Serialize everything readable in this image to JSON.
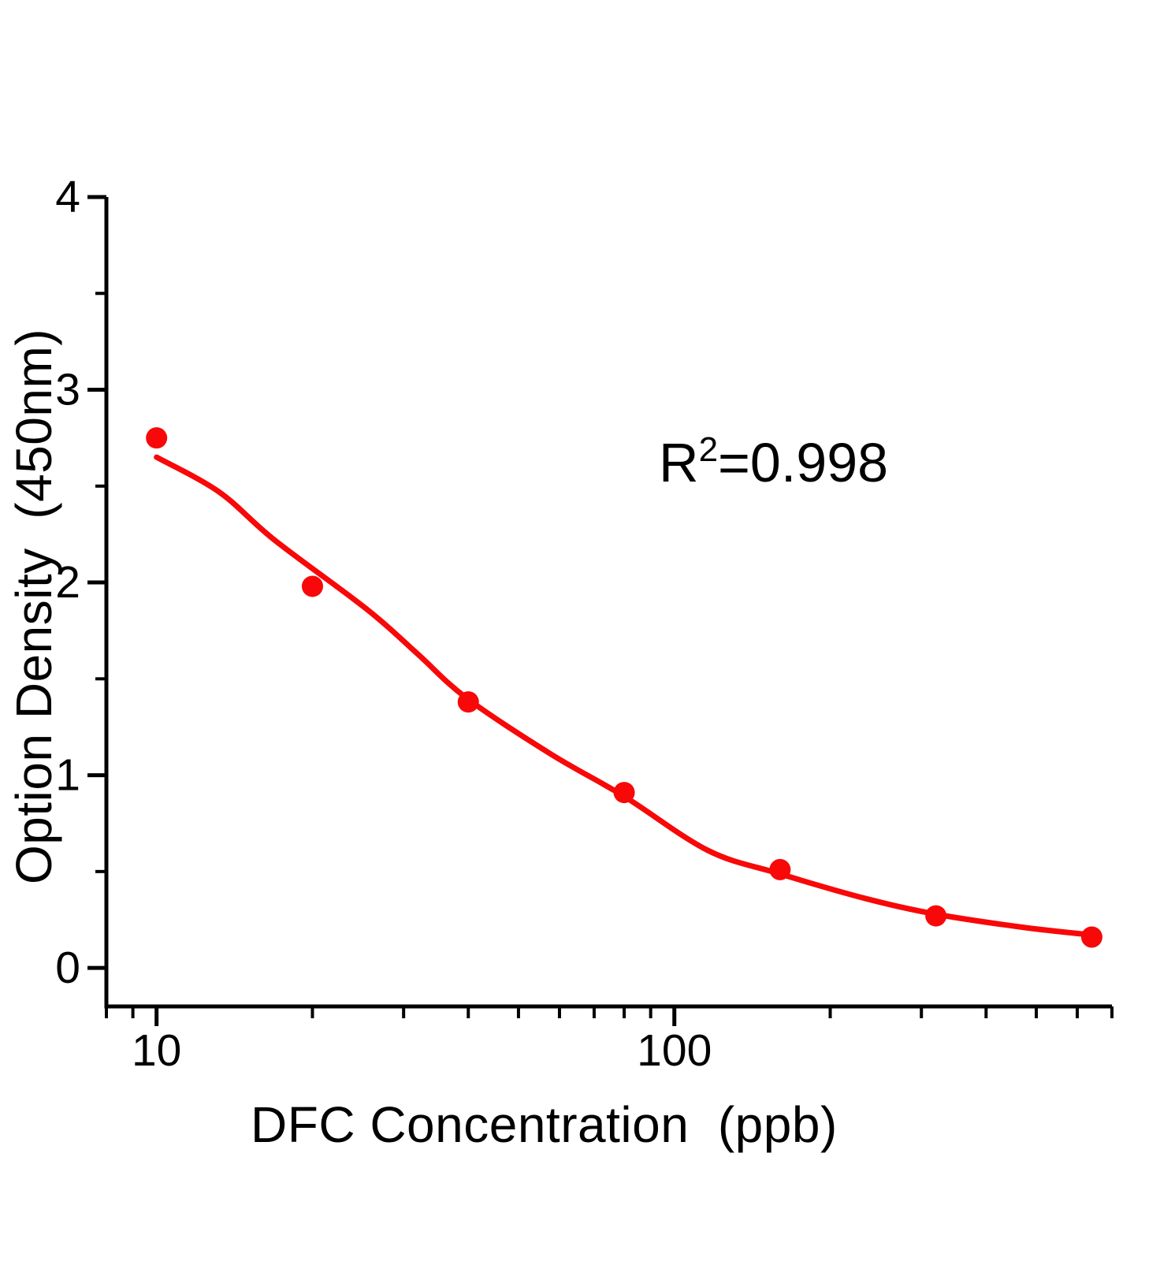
{
  "chart_data": {
    "type": "scatter",
    "title": "",
    "xlabel": "DFC Concentration  (ppb)",
    "ylabel": "Option Density  (450nm)",
    "annotation": {
      "base": "R",
      "sup": "2",
      "rest": "=0.998"
    },
    "x_scale": "log",
    "x_range": [
      8,
      700
    ],
    "y_range": [
      -0.2,
      4.0
    ],
    "x_major_ticks": [
      {
        "value": 10,
        "label": "10"
      },
      {
        "value": 100,
        "label": "100"
      }
    ],
    "x_minor_ticks": [
      8,
      9,
      20,
      30,
      40,
      50,
      60,
      70,
      80,
      90,
      200,
      300,
      400,
      500,
      600,
      700
    ],
    "y_major_ticks": [
      {
        "value": 0,
        "label": "0"
      },
      {
        "value": 1,
        "label": "1"
      },
      {
        "value": 2,
        "label": "2"
      },
      {
        "value": 3,
        "label": "3"
      },
      {
        "value": 4,
        "label": "4"
      }
    ],
    "y_minor_ticks": [
      0.5,
      1.5,
      2.5,
      3.5
    ],
    "grid": false,
    "legend": false,
    "series": [
      {
        "name": "standard-points",
        "x": [
          10,
          20,
          40,
          80,
          160,
          320,
          640
        ],
        "y": [
          2.75,
          1.98,
          1.38,
          0.91,
          0.51,
          0.27,
          0.16
        ]
      }
    ],
    "fit_curve": {
      "name": "4pl-fit",
      "x": [
        10,
        13.2,
        16.9,
        25.5,
        31.9,
        39.7,
        57.7,
        80,
        116,
        159,
        234,
        318,
        473,
        645
      ],
      "y": [
        2.65,
        2.47,
        2.22,
        1.86,
        1.63,
        1.4,
        1.11,
        0.89,
        0.61,
        0.49,
        0.36,
        0.28,
        0.21,
        0.17
      ]
    },
    "colors": {
      "series": "#f80808",
      "axis": "#000000",
      "background": "#ffffff"
    }
  }
}
